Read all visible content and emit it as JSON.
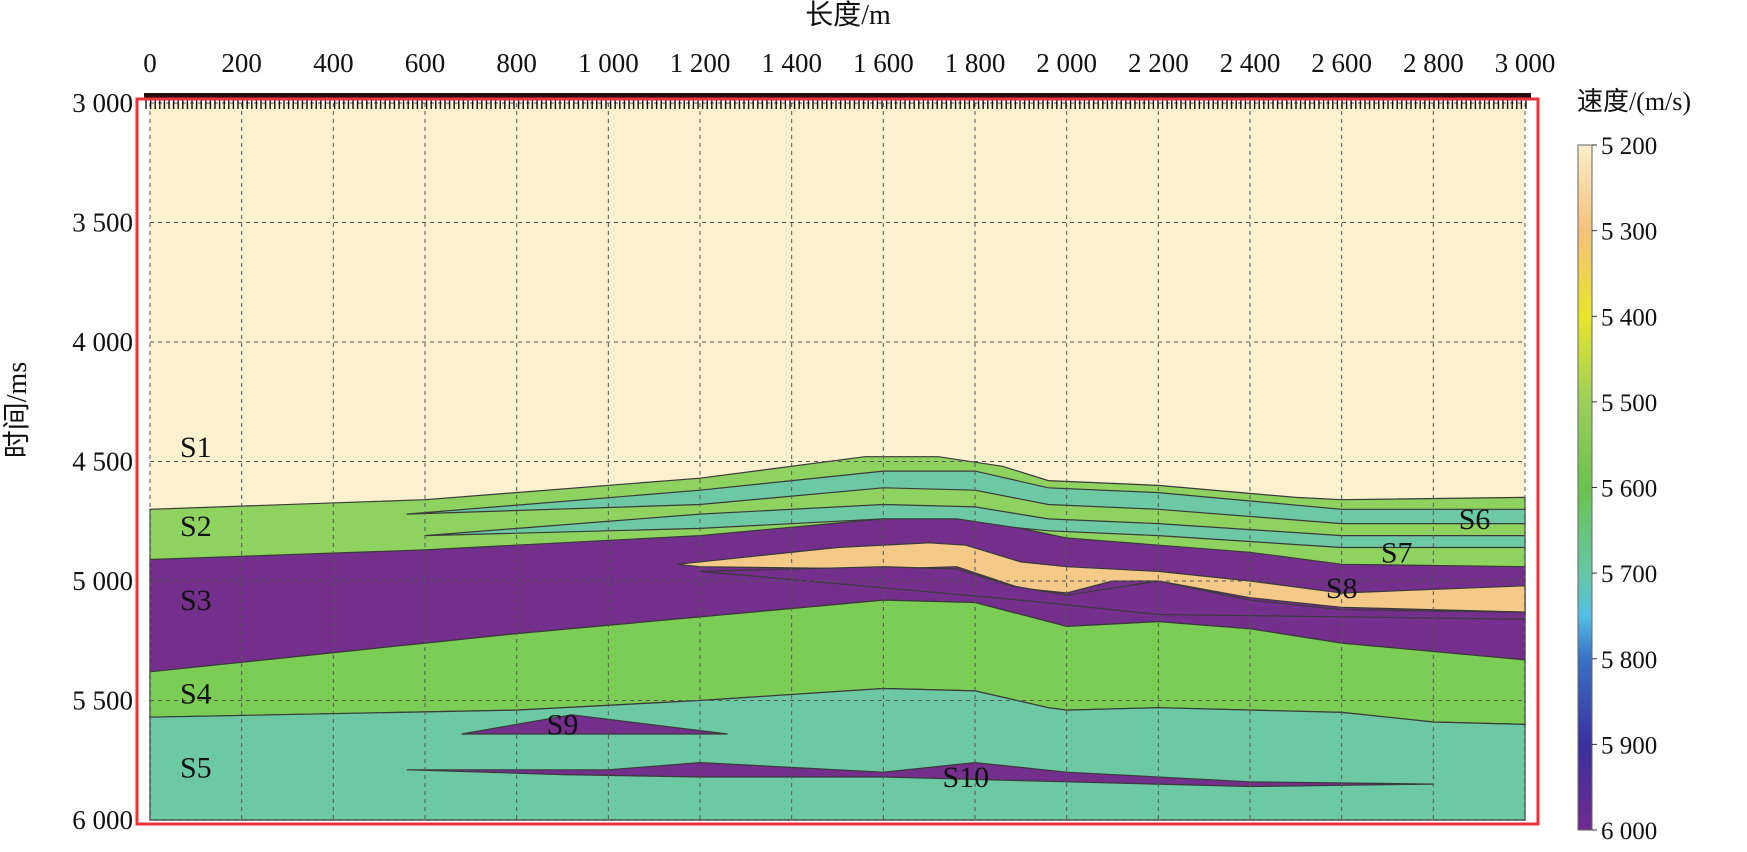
{
  "chart_data": {
    "type": "diagram",
    "title": "",
    "xlabel": "长度/m",
    "ylabel": "时间/ms",
    "x_ticks": [
      {
        "value": 0,
        "label": "0"
      },
      {
        "value": 200,
        "label": "200"
      },
      {
        "value": 400,
        "label": "400"
      },
      {
        "value": 600,
        "label": "600"
      },
      {
        "value": 800,
        "label": "800"
      },
      {
        "value": 1000,
        "label": "1 000"
      },
      {
        "value": 1200,
        "label": "1 200"
      },
      {
        "value": 1400,
        "label": "1 400"
      },
      {
        "value": 1600,
        "label": "1 600"
      },
      {
        "value": 1800,
        "label": "1 800"
      },
      {
        "value": 2000,
        "label": "2 000"
      },
      {
        "value": 2200,
        "label": "2 200"
      },
      {
        "value": 2400,
        "label": "2 400"
      },
      {
        "value": 2600,
        "label": "2 600"
      },
      {
        "value": 2800,
        "label": "2 800"
      },
      {
        "value": 3000,
        "label": "3 000"
      }
    ],
    "y_ticks": [
      {
        "value": 3000,
        "label": "3 000"
      },
      {
        "value": 3500,
        "label": "3 500"
      },
      {
        "value": 4000,
        "label": "4 000"
      },
      {
        "value": 4500,
        "label": "4 500"
      },
      {
        "value": 5000,
        "label": "5 000"
      },
      {
        "value": 5500,
        "label": "5 500"
      },
      {
        "value": 6000,
        "label": "6 000"
      }
    ],
    "xlim": [
      0,
      3000
    ],
    "ylim": [
      3000,
      6000
    ],
    "grid": true,
    "colorbar": {
      "title": "速度/(m/s)",
      "ticks": [
        {
          "value": 5200,
          "label": "5 200"
        },
        {
          "value": 5300,
          "label": "5 300"
        },
        {
          "value": 5400,
          "label": "5 400"
        },
        {
          "value": 5500,
          "label": "5 500"
        },
        {
          "value": 5600,
          "label": "5 600"
        },
        {
          "value": 5700,
          "label": "5 700"
        },
        {
          "value": 5800,
          "label": "5 800"
        },
        {
          "value": 5900,
          "label": "5 900"
        },
        {
          "value": 6000,
          "label": "6 000"
        }
      ],
      "stops": [
        {
          "value": 5200,
          "color": "#fbefcb"
        },
        {
          "value": 5300,
          "color": "#f5c17b"
        },
        {
          "value": 5400,
          "color": "#e8e62a"
        },
        {
          "value": 5500,
          "color": "#9ccf58"
        },
        {
          "value": 5600,
          "color": "#6cc24f"
        },
        {
          "value": 5700,
          "color": "#64c7a6"
        },
        {
          "value": 5750,
          "color": "#52bfe3"
        },
        {
          "value": 5800,
          "color": "#3a70c8"
        },
        {
          "value": 5900,
          "color": "#3a30a0"
        },
        {
          "value": 6000,
          "color": "#702b8f"
        }
      ]
    },
    "colors": {
      "S1": "#fcf1ce",
      "green_light": "#8ed35f",
      "green": "#7ccd55",
      "teal": "#6cc9a4",
      "purple": "#742e8b",
      "orange": "#f5c987",
      "frame": "#e8323c"
    },
    "regions": [
      {
        "label": "",
        "color": "S1",
        "points": [
          [
            0,
            3000
          ],
          [
            3000,
            3000
          ],
          [
            3000,
            6000
          ],
          [
            0,
            6000
          ]
        ]
      },
      {
        "label": "",
        "color": "green_light",
        "points": [
          [
            0,
            4700
          ],
          [
            600,
            4660
          ],
          [
            1200,
            4570
          ],
          [
            1560,
            4480
          ],
          [
            1720,
            4480
          ],
          [
            1860,
            4520
          ],
          [
            1960,
            4580
          ],
          [
            2200,
            4600
          ],
          [
            2500,
            4650
          ],
          [
            2600,
            4660
          ],
          [
            3000,
            4650
          ],
          [
            3000,
            6000
          ],
          [
            0,
            6000
          ]
        ]
      },
      {
        "label": "",
        "color": "teal",
        "points": [
          [
            560,
            4720
          ],
          [
            1200,
            4620
          ],
          [
            1600,
            4540
          ],
          [
            1800,
            4540
          ],
          [
            1960,
            4610
          ],
          [
            2200,
            4630
          ],
          [
            2600,
            4700
          ],
          [
            3000,
            4700
          ],
          [
            3000,
            4760
          ],
          [
            2600,
            4760
          ],
          [
            2200,
            4700
          ],
          [
            1960,
            4680
          ],
          [
            1800,
            4620
          ],
          [
            1600,
            4610
          ],
          [
            1200,
            4680
          ],
          [
            560,
            4720
          ]
        ]
      },
      {
        "label": "",
        "color": "teal",
        "points": [
          [
            600,
            4810
          ],
          [
            1200,
            4720
          ],
          [
            1600,
            4680
          ],
          [
            1800,
            4690
          ],
          [
            1960,
            4740
          ],
          [
            2200,
            4760
          ],
          [
            2600,
            4810
          ],
          [
            3000,
            4810
          ],
          [
            3000,
            4860
          ],
          [
            2600,
            4860
          ],
          [
            2200,
            4810
          ],
          [
            1960,
            4790
          ],
          [
            1800,
            4760
          ],
          [
            1600,
            4740
          ],
          [
            1200,
            4780
          ],
          [
            600,
            4810
          ]
        ]
      },
      {
        "label": "",
        "color": "purple",
        "points": [
          [
            0,
            4910
          ],
          [
            600,
            4870
          ],
          [
            1200,
            4810
          ],
          [
            1600,
            4740
          ],
          [
            1760,
            4740
          ],
          [
            1900,
            4780
          ],
          [
            2000,
            4820
          ],
          [
            2400,
            4880
          ],
          [
            2600,
            4930
          ],
          [
            3000,
            4940
          ],
          [
            3000,
            5330
          ],
          [
            2600,
            5260
          ],
          [
            2400,
            5200
          ],
          [
            2200,
            5170
          ],
          [
            2000,
            5190
          ],
          [
            1960,
            5170
          ],
          [
            1800,
            5090
          ],
          [
            1600,
            5080
          ],
          [
            1200,
            5150
          ],
          [
            800,
            5220
          ],
          [
            600,
            5260
          ],
          [
            200,
            5340
          ],
          [
            0,
            5380
          ]
        ]
      },
      {
        "label": "",
        "color": "orange",
        "points": [
          [
            1150,
            4930
          ],
          [
            1500,
            4860
          ],
          [
            1700,
            4840
          ],
          [
            1780,
            4850
          ],
          [
            1900,
            4920
          ],
          [
            2000,
            4940
          ],
          [
            2200,
            4960
          ],
          [
            2400,
            5000
          ],
          [
            2600,
            5050
          ],
          [
            3000,
            5020
          ],
          [
            3000,
            5130
          ],
          [
            2600,
            5110
          ],
          [
            2400,
            5070
          ],
          [
            2200,
            5000
          ],
          [
            2100,
            5000
          ],
          [
            2000,
            5050
          ],
          [
            1900,
            5030
          ],
          [
            1760,
            4940
          ],
          [
            1600,
            4950
          ],
          [
            1200,
            4940
          ],
          [
            1150,
            4930
          ]
        ]
      },
      {
        "label": "",
        "color": "purple",
        "points": [
          [
            1200,
            4960
          ],
          [
            1600,
            4940
          ],
          [
            1760,
            4950
          ],
          [
            1880,
            5020
          ],
          [
            2000,
            5060
          ],
          [
            2200,
            5000
          ],
          [
            2400,
            5080
          ],
          [
            2600,
            5120
          ],
          [
            3000,
            5130
          ],
          [
            3000,
            5160
          ],
          [
            2200,
            5140
          ],
          [
            1900,
            5080
          ],
          [
            1200,
            4960
          ]
        ]
      },
      {
        "label": "",
        "color": "green",
        "points": [
          [
            0,
            5380
          ],
          [
            200,
            5340
          ],
          [
            600,
            5260
          ],
          [
            800,
            5220
          ],
          [
            1200,
            5150
          ],
          [
            1600,
            5080
          ],
          [
            1800,
            5090
          ],
          [
            1960,
            5170
          ],
          [
            2000,
            5190
          ],
          [
            2200,
            5170
          ],
          [
            2400,
            5200
          ],
          [
            2600,
            5260
          ],
          [
            3000,
            5330
          ],
          [
            3000,
            5600
          ],
          [
            2800,
            5590
          ],
          [
            2600,
            5550
          ],
          [
            2200,
            5530
          ],
          [
            2000,
            5540
          ],
          [
            1960,
            5530
          ],
          [
            1800,
            5460
          ],
          [
            1600,
            5450
          ],
          [
            1200,
            5500
          ],
          [
            800,
            5540
          ],
          [
            0,
            5570
          ]
        ]
      },
      {
        "label": "",
        "color": "teal",
        "points": [
          [
            0,
            5570
          ],
          [
            800,
            5540
          ],
          [
            1200,
            5500
          ],
          [
            1600,
            5450
          ],
          [
            1800,
            5460
          ],
          [
            1960,
            5530
          ],
          [
            2000,
            5540
          ],
          [
            2200,
            5530
          ],
          [
            2600,
            5550
          ],
          [
            2800,
            5590
          ],
          [
            3000,
            5600
          ],
          [
            3000,
            6000
          ],
          [
            0,
            6000
          ]
        ]
      },
      {
        "label": "",
        "color": "purple",
        "points": [
          [
            680,
            5640
          ],
          [
            860,
            5580
          ],
          [
            920,
            5560
          ],
          [
            1260,
            5640
          ],
          [
            680,
            5640
          ]
        ]
      },
      {
        "label": "",
        "color": "purple",
        "points": [
          [
            560,
            5790
          ],
          [
            1000,
            5790
          ],
          [
            1200,
            5760
          ],
          [
            1600,
            5800
          ],
          [
            1800,
            5760
          ],
          [
            2000,
            5800
          ],
          [
            2400,
            5840
          ],
          [
            2800,
            5850
          ],
          [
            2400,
            5860
          ],
          [
            2000,
            5840
          ],
          [
            1600,
            5820
          ],
          [
            1200,
            5820
          ],
          [
            900,
            5810
          ],
          [
            560,
            5790
          ]
        ]
      }
    ],
    "layer_labels": [
      {
        "text": "S1",
        "x": 100,
        "y": 4440
      },
      {
        "text": "S2",
        "x": 100,
        "y": 4770
      },
      {
        "text": "S3",
        "x": 100,
        "y": 5080
      },
      {
        "text": "S4",
        "x": 100,
        "y": 5470
      },
      {
        "text": "S5",
        "x": 100,
        "y": 5780
      },
      {
        "text": "S6",
        "x": 2890,
        "y": 4740
      },
      {
        "text": "S7",
        "x": 2720,
        "y": 4880
      },
      {
        "text": "S8",
        "x": 2600,
        "y": 5030
      },
      {
        "text": "S9",
        "x": 900,
        "y": 5600
      },
      {
        "text": "S10",
        "x": 1780,
        "y": 5820
      }
    ]
  }
}
